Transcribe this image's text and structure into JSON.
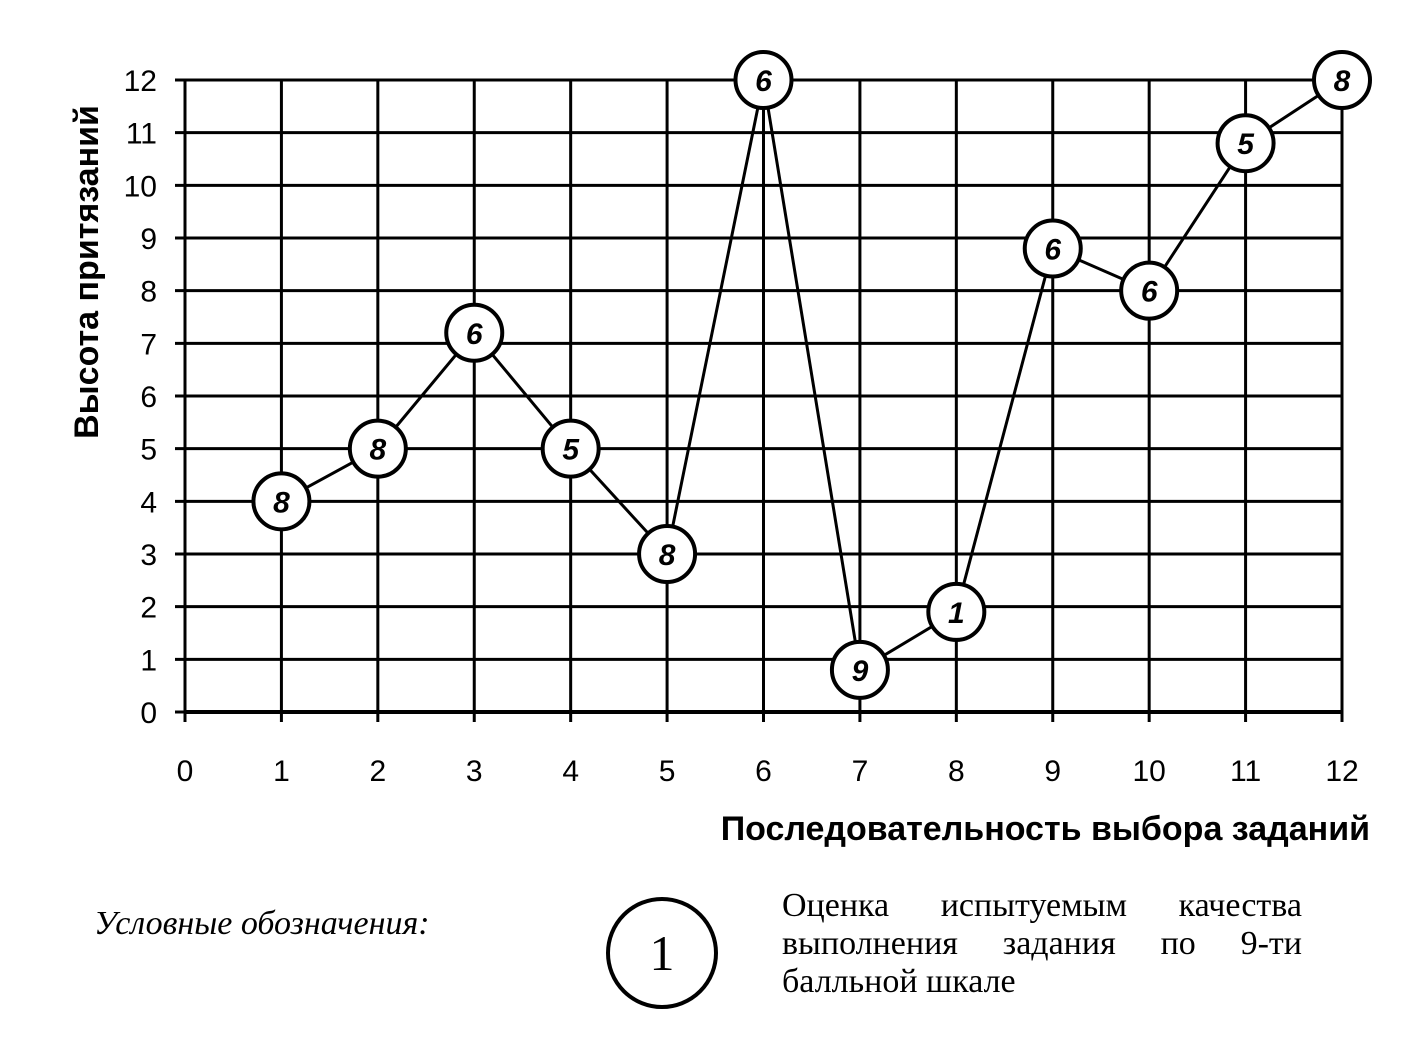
{
  "chart_data": {
    "type": "line",
    "xlabel": "Последовательность выбора заданий",
    "ylabel": "Высота притязаний",
    "xlim": [
      0,
      12
    ],
    "ylim": [
      0,
      12
    ],
    "x_ticks": [
      "0",
      "1",
      "2",
      "3",
      "4",
      "5",
      "6",
      "7",
      "8",
      "9",
      "10",
      "11",
      "12"
    ],
    "y_ticks": [
      "0",
      "1",
      "2",
      "3",
      "4",
      "5",
      "6",
      "7",
      "8",
      "9",
      "10",
      "11",
      "12"
    ],
    "grid": true,
    "points": [
      {
        "x": 1,
        "y": 4,
        "label": "8"
      },
      {
        "x": 2,
        "y": 5,
        "label": "8"
      },
      {
        "x": 3,
        "y": 7.2,
        "label": "6"
      },
      {
        "x": 4,
        "y": 5,
        "label": "5"
      },
      {
        "x": 5,
        "y": 3,
        "label": "8"
      },
      {
        "x": 6,
        "y": 12,
        "label": "6"
      },
      {
        "x": 7,
        "y": 0.8,
        "label": "9"
      },
      {
        "x": 8,
        "y": 1.9,
        "label": "1"
      },
      {
        "x": 9,
        "y": 8.8,
        "label": "6"
      },
      {
        "x": 10,
        "y": 8,
        "label": "6"
      },
      {
        "x": 11,
        "y": 10.8,
        "label": "5"
      },
      {
        "x": 12,
        "y": 12,
        "label": "8"
      }
    ]
  },
  "legend": {
    "caption": "Условные обозначения:",
    "symbol_label": "1",
    "description": "Оценка испытуемым качества выполнения задания по 9-ти балльной шкале"
  }
}
